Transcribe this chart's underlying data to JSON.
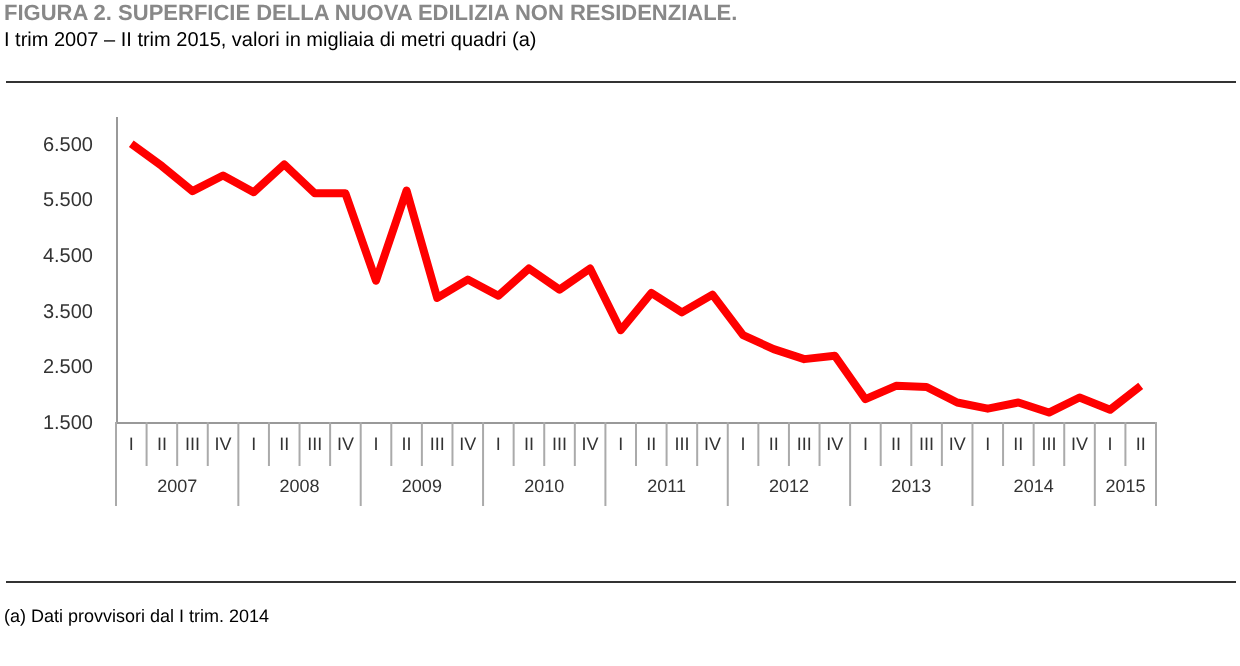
{
  "chart_data": {
    "type": "line",
    "title": "FIGURA 2. SUPERFICIE DELLA NUOVA EDILIZIA NON RESIDENZIALE.",
    "subtitle": "I trim 2007 – II trim 2015, valori in migliaia di metri quadri (a)",
    "categories": [
      "I",
      "II",
      "III",
      "IV",
      "I",
      "II",
      "III",
      "IV",
      "I",
      "II",
      "III",
      "IV",
      "I",
      "II",
      "III",
      "IV",
      "I",
      "II",
      "III",
      "IV",
      "I",
      "II",
      "III",
      "IV",
      "I",
      "II",
      "III",
      "IV",
      "I",
      "II",
      "III",
      "IV",
      "I",
      "II"
    ],
    "series": [
      {
        "color": "#ff0000",
        "values": [
          6500,
          6100,
          5650,
          5930,
          5630,
          6130,
          5610,
          5610,
          4040,
          5660,
          3730,
          4060,
          3770,
          4260,
          3880,
          4260,
          3150,
          3820,
          3470,
          3790,
          3060,
          2810,
          2630,
          2690,
          1910,
          2150,
          2130,
          1850,
          1740,
          1850,
          1670,
          1940,
          1720,
          2150
        ]
      }
    ],
    "ylim": [
      1500,
      7000
    ],
    "yticks": [
      {
        "value": 1500,
        "label": "1.500"
      },
      {
        "value": 2500,
        "label": "2.500"
      },
      {
        "value": 3500,
        "label": "3.500"
      },
      {
        "value": 4500,
        "label": "4.500"
      },
      {
        "value": 5500,
        "label": "5.500"
      },
      {
        "value": 6500,
        "label": "6.500"
      }
    ],
    "grid": false,
    "marker": "none",
    "line_style": "solid",
    "annotations": [
      "2007",
      "2008",
      "2009",
      "2010",
      "2011",
      "2012",
      "2013",
      "2014",
      "2015",
      "(a) Dati provvisori dal I trim. 2014"
    ]
  }
}
